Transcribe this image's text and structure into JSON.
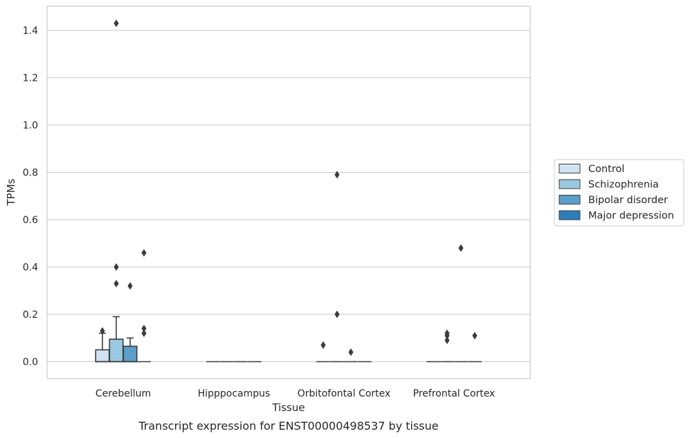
{
  "chart_data": {
    "type": "boxplot",
    "caption": "Transcript expression for ENST00000498537 by tissue",
    "xlabel": "Tissue",
    "ylabel": "TPMs",
    "ylim": [
      -0.07,
      1.5
    ],
    "yticks": [
      0.0,
      0.2,
      0.4,
      0.6,
      0.8,
      1.0,
      1.2,
      1.4
    ],
    "ytick_labels": [
      "0.0",
      "0.2",
      "0.4",
      "0.6",
      "0.8",
      "1.0",
      "1.2",
      "1.4"
    ],
    "grid": true,
    "legend_position": "right",
    "categories": [
      "Cerebellum",
      "Hipppocampus",
      "Orbitofontal Cortex",
      "Prefrontal Cortex"
    ],
    "series": [
      {
        "name": "Control",
        "color": "#d1e2f2",
        "boxes": [
          {
            "q1": 0.0,
            "median": 0.0,
            "q3": 0.05,
            "whisker_low": 0.0,
            "whisker_high": 0.12,
            "outliers": [
              0.13
            ]
          },
          {
            "q1": 0.0,
            "median": 0.0,
            "q3": 0.0,
            "whisker_low": 0.0,
            "whisker_high": 0.0,
            "outliers": []
          },
          {
            "q1": 0.0,
            "median": 0.0,
            "q3": 0.0,
            "whisker_low": 0.0,
            "whisker_high": 0.0,
            "outliers": [
              0.07
            ]
          },
          {
            "q1": 0.0,
            "median": 0.0,
            "q3": 0.0,
            "whisker_low": 0.0,
            "whisker_high": 0.0,
            "outliers": []
          }
        ]
      },
      {
        "name": "Schizophrenia",
        "color": "#9ac8e0",
        "boxes": [
          {
            "q1": 0.0,
            "median": 0.0,
            "q3": 0.095,
            "whisker_low": 0.0,
            "whisker_high": 0.19,
            "outliers": [
              0.4,
              0.33,
              1.43
            ]
          },
          {
            "q1": 0.0,
            "median": 0.0,
            "q3": 0.0,
            "whisker_low": 0.0,
            "whisker_high": 0.0,
            "outliers": []
          },
          {
            "q1": 0.0,
            "median": 0.0,
            "q3": 0.0,
            "whisker_low": 0.0,
            "whisker_high": 0.0,
            "outliers": [
              0.79,
              0.2
            ]
          },
          {
            "q1": 0.0,
            "median": 0.0,
            "q3": 0.0,
            "whisker_low": 0.0,
            "whisker_high": 0.0,
            "outliers": [
              0.12,
              0.11,
              0.09
            ]
          }
        ]
      },
      {
        "name": "Bipolar disorder",
        "color": "#5b9ec9",
        "boxes": [
          {
            "q1": 0.0,
            "median": 0.0,
            "q3": 0.065,
            "whisker_low": 0.0,
            "whisker_high": 0.1,
            "outliers": [
              0.32
            ]
          },
          {
            "q1": 0.0,
            "median": 0.0,
            "q3": 0.0,
            "whisker_low": 0.0,
            "whisker_high": 0.0,
            "outliers": []
          },
          {
            "q1": 0.0,
            "median": 0.0,
            "q3": 0.0,
            "whisker_low": 0.0,
            "whisker_high": 0.0,
            "outliers": [
              0.04
            ]
          },
          {
            "q1": 0.0,
            "median": 0.0,
            "q3": 0.0,
            "whisker_low": 0.0,
            "whisker_high": 0.0,
            "outliers": [
              0.48
            ]
          }
        ]
      },
      {
        "name": "Major depression",
        "color": "#2d7dbb",
        "boxes": [
          {
            "q1": 0.0,
            "median": 0.0,
            "q3": 0.0,
            "whisker_low": 0.0,
            "whisker_high": 0.0,
            "outliers": [
              0.46,
              0.14,
              0.12
            ]
          },
          {
            "q1": 0.0,
            "median": 0.0,
            "q3": 0.0,
            "whisker_low": 0.0,
            "whisker_high": 0.0,
            "outliers": []
          },
          {
            "q1": 0.0,
            "median": 0.0,
            "q3": 0.0,
            "whisker_low": 0.0,
            "whisker_high": 0.0,
            "outliers": []
          },
          {
            "q1": 0.0,
            "median": 0.0,
            "q3": 0.0,
            "whisker_low": 0.0,
            "whisker_high": 0.0,
            "outliers": [
              0.11
            ]
          }
        ]
      }
    ]
  }
}
